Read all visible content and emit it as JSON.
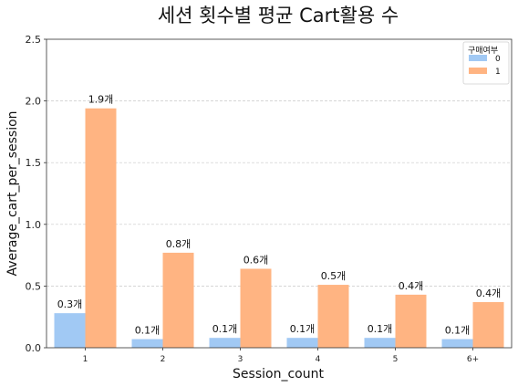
{
  "chart_data": {
    "type": "bar",
    "title": "세션 횟수별 평균 Cart활용 수",
    "xlabel": "Session_count",
    "ylabel": "Average_cart_per_session",
    "categories": [
      "1",
      "2",
      "3",
      "4",
      "5",
      "6+"
    ],
    "ylim": [
      0,
      2.5
    ],
    "yticks": [
      0.0,
      0.5,
      1.0,
      1.5,
      2.0,
      2.5
    ],
    "ytick_labels": [
      "0.0",
      "0.5",
      "1.0",
      "1.5",
      "2.0",
      "2.5"
    ],
    "grid": "y-dashed",
    "legend": {
      "title": "구매여부",
      "position": "top-right"
    },
    "series": [
      {
        "name": "0",
        "color": "#a1c9f4",
        "values": [
          0.28,
          0.07,
          0.08,
          0.08,
          0.08,
          0.07
        ],
        "labels": [
          "0.3개",
          "0.1개",
          "0.1개",
          "0.1개",
          "0.1개",
          "0.1개"
        ]
      },
      {
        "name": "1",
        "color": "#ffb482",
        "values": [
          1.94,
          0.77,
          0.64,
          0.51,
          0.43,
          0.37
        ],
        "labels": [
          "1.9개",
          "0.8개",
          "0.6개",
          "0.5개",
          "0.4개",
          "0.4개"
        ]
      }
    ]
  }
}
